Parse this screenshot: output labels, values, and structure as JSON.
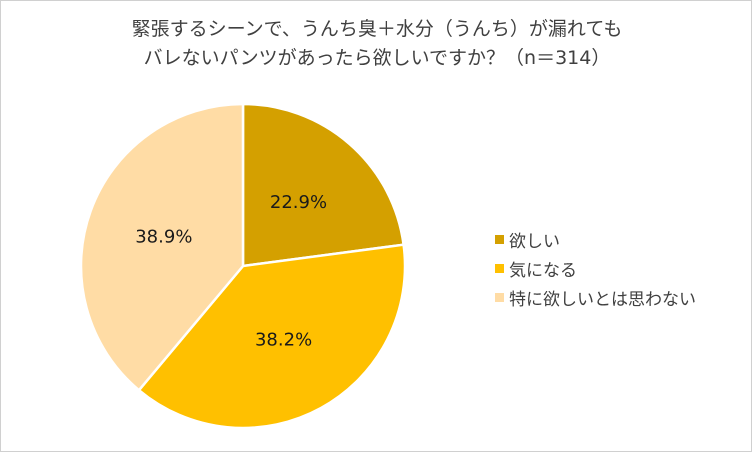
{
  "chart_data": {
    "type": "pie",
    "title_lines": [
      "緊張するシーンで、うんち臭＋水分（うんち）が漏れても",
      "バレないパンツがあったら欲しいですか？（n＝314）"
    ],
    "categories": [
      "欲しい",
      "気になる",
      "特に欲しいとは思わない"
    ],
    "values": [
      22.9,
      38.2,
      38.9
    ],
    "labels": [
      "22.9%",
      "38.2%",
      "38.9%"
    ],
    "colors": [
      "#D4A000",
      "#FFC000",
      "#FFDCA5"
    ],
    "start_angle_deg": 0,
    "direction": "clockwise",
    "legend_position": "right"
  }
}
